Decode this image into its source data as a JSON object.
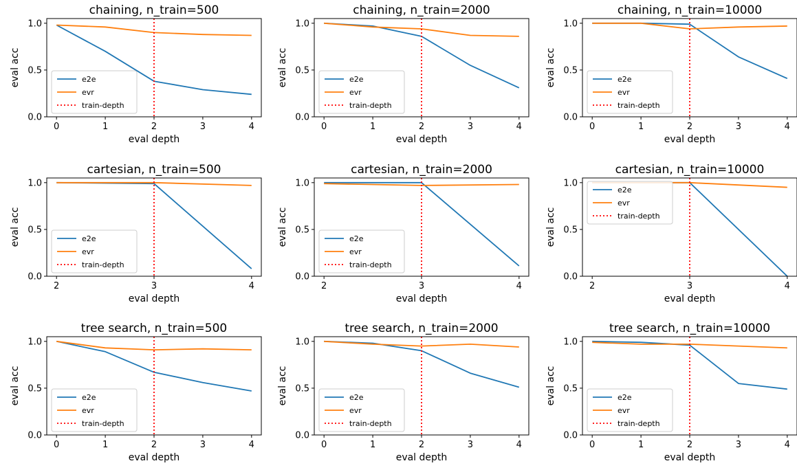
{
  "colors": {
    "e2e": "#1f77b4",
    "evr": "#ff7f0e",
    "train_depth": "#ff0000"
  },
  "legend_labels": [
    "e2e",
    "evr",
    "train-depth"
  ],
  "chart_data": [
    {
      "type": "line",
      "title": "chaining, n_train=500",
      "xlabel": "eval depth",
      "ylabel": "eval acc",
      "x": [
        0,
        1,
        2,
        3,
        4
      ],
      "xlim": [
        -0.2,
        4.2
      ],
      "ylim": [
        0,
        1.05
      ],
      "yticks": [
        0.0,
        0.5,
        1.0
      ],
      "yticklabels": [
        "0.0",
        "0.5",
        "1.0"
      ],
      "train_depth": 2,
      "legend": "lower-left",
      "series": [
        {
          "name": "e2e",
          "values": [
            0.98,
            0.7,
            0.38,
            0.29,
            0.24
          ]
        },
        {
          "name": "evr",
          "values": [
            0.98,
            0.96,
            0.9,
            0.88,
            0.87
          ]
        }
      ]
    },
    {
      "type": "line",
      "title": "chaining, n_train=2000",
      "xlabel": "eval depth",
      "ylabel": "eval acc",
      "x": [
        0,
        1,
        2,
        3,
        4
      ],
      "xlim": [
        -0.2,
        4.2
      ],
      "ylim": [
        0,
        1.05
      ],
      "yticks": [
        0.0,
        0.5,
        1.0
      ],
      "yticklabels": [
        "0.0",
        "0.5",
        "1.0"
      ],
      "train_depth": 2,
      "legend": "lower-left",
      "series": [
        {
          "name": "e2e",
          "values": [
            1.0,
            0.97,
            0.86,
            0.55,
            0.31
          ]
        },
        {
          "name": "evr",
          "values": [
            1.0,
            0.96,
            0.94,
            0.87,
            0.86
          ]
        }
      ]
    },
    {
      "type": "line",
      "title": "chaining, n_train=10000",
      "xlabel": "eval depth",
      "ylabel": "eval acc",
      "x": [
        0,
        1,
        2,
        3,
        4
      ],
      "xlim": [
        -0.2,
        4.2
      ],
      "ylim": [
        0,
        1.05
      ],
      "yticks": [
        0.0,
        0.5,
        1.0
      ],
      "yticklabels": [
        "0.0",
        "0.5",
        "1.0"
      ],
      "train_depth": 2,
      "legend": "lower-left",
      "series": [
        {
          "name": "e2e",
          "values": [
            1.0,
            1.0,
            0.99,
            0.64,
            0.41
          ]
        },
        {
          "name": "evr",
          "values": [
            1.0,
            1.0,
            0.94,
            0.96,
            0.97
          ]
        }
      ]
    },
    {
      "type": "line",
      "title": "cartesian, n_train=500",
      "xlabel": "eval depth",
      "ylabel": "eval acc",
      "x": [
        2,
        3,
        4
      ],
      "xlim": [
        1.9,
        4.1
      ],
      "ylim": [
        0,
        1.05
      ],
      "yticks": [
        0.0,
        0.5,
        1.0
      ],
      "yticklabels": [
        "0.0",
        "0.5",
        "1.0"
      ],
      "train_depth": 3,
      "legend": "lower-left",
      "series": [
        {
          "name": "e2e",
          "values": [
            1.0,
            0.99,
            0.08
          ]
        },
        {
          "name": "evr",
          "values": [
            1.0,
            1.0,
            0.97
          ]
        }
      ]
    },
    {
      "type": "line",
      "title": "cartesian, n_train=2000",
      "xlabel": "eval depth",
      "ylabel": "eval acc",
      "x": [
        2,
        3,
        4
      ],
      "xlim": [
        1.9,
        4.1
      ],
      "ylim": [
        0,
        1.05
      ],
      "yticks": [
        0.0,
        0.5,
        1.0
      ],
      "yticklabels": [
        "0.0",
        "0.5",
        "1.0"
      ],
      "train_depth": 3,
      "legend": "lower-left",
      "series": [
        {
          "name": "e2e",
          "values": [
            1.0,
            1.0,
            0.11
          ]
        },
        {
          "name": "evr",
          "values": [
            0.99,
            0.97,
            0.98
          ]
        }
      ]
    },
    {
      "type": "line",
      "title": "cartesian, n_train=10000",
      "xlabel": "eval depth",
      "ylabel": "eval acc",
      "x": [
        2,
        3,
        4
      ],
      "xlim": [
        1.9,
        4.1
      ],
      "ylim": [
        0,
        1.05
      ],
      "yticks": [
        0.0,
        0.5,
        1.0
      ],
      "yticklabels": [
        "0.0",
        "0.5",
        "1.0"
      ],
      "train_depth": 3,
      "legend": "upper-left",
      "series": [
        {
          "name": "e2e",
          "values": [
            1.0,
            1.0,
            0.0
          ]
        },
        {
          "name": "evr",
          "values": [
            1.0,
            1.0,
            0.95
          ]
        }
      ]
    },
    {
      "type": "line",
      "title": "tree search, n_train=500",
      "xlabel": "eval depth",
      "ylabel": "eval acc",
      "x": [
        0,
        1,
        2,
        3,
        4
      ],
      "xlim": [
        -0.2,
        4.2
      ],
      "ylim": [
        0,
        1.05
      ],
      "yticks": [
        0.0,
        0.5,
        1.0
      ],
      "yticklabels": [
        "0.0",
        "0.5",
        "1.0"
      ],
      "train_depth": 2,
      "legend": "lower-left",
      "series": [
        {
          "name": "e2e",
          "values": [
            1.0,
            0.89,
            0.67,
            0.56,
            0.47
          ]
        },
        {
          "name": "evr",
          "values": [
            1.0,
            0.93,
            0.91,
            0.92,
            0.91
          ]
        }
      ]
    },
    {
      "type": "line",
      "title": "tree search, n_train=2000",
      "xlabel": "eval depth",
      "ylabel": "eval acc",
      "x": [
        0,
        1,
        2,
        3,
        4
      ],
      "xlim": [
        -0.2,
        4.2
      ],
      "ylim": [
        0,
        1.05
      ],
      "yticks": [
        0.0,
        0.5,
        1.0
      ],
      "yticklabels": [
        "0.0",
        "0.5",
        "1.0"
      ],
      "train_depth": 2,
      "legend": "lower-left",
      "series": [
        {
          "name": "e2e",
          "values": [
            1.0,
            0.98,
            0.9,
            0.66,
            0.51
          ]
        },
        {
          "name": "evr",
          "values": [
            1.0,
            0.97,
            0.95,
            0.97,
            0.94
          ]
        }
      ]
    },
    {
      "type": "line",
      "title": "tree search, n_train=10000",
      "xlabel": "eval depth",
      "ylabel": "eval acc",
      "x": [
        0,
        1,
        2,
        3,
        4
      ],
      "xlim": [
        -0.2,
        4.2
      ],
      "ylim": [
        0,
        1.05
      ],
      "yticks": [
        0.0,
        0.5,
        1.0
      ],
      "yticklabels": [
        "0.0",
        "0.5",
        "1.0"
      ],
      "train_depth": 2,
      "legend": "lower-left",
      "series": [
        {
          "name": "e2e",
          "values": [
            1.0,
            0.99,
            0.96,
            0.55,
            0.49
          ]
        },
        {
          "name": "evr",
          "values": [
            0.99,
            0.97,
            0.97,
            0.95,
            0.93
          ]
        }
      ]
    }
  ]
}
